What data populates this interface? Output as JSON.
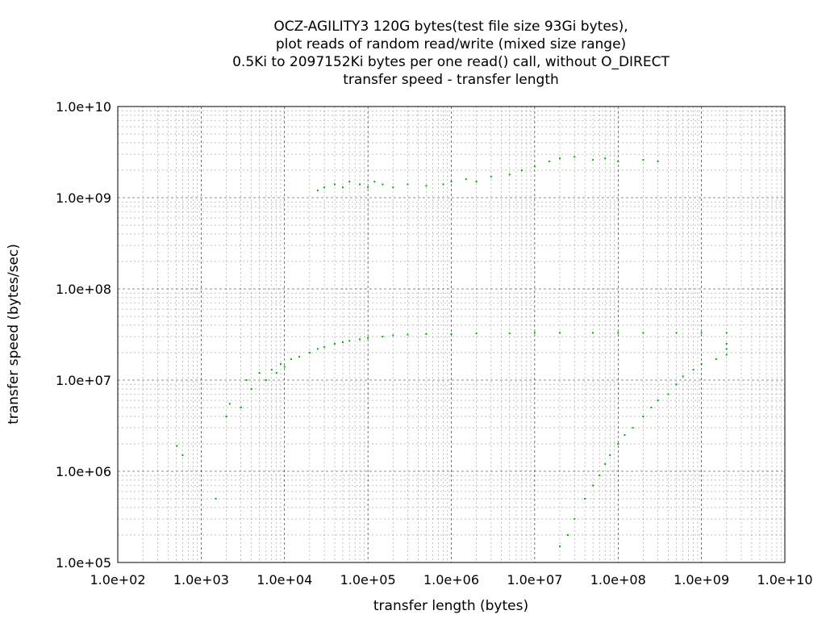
{
  "chart_data": {
    "type": "scatter",
    "title_lines": [
      "OCZ-AGILITY3 120G bytes(test file size 93Gi bytes),",
      "plot reads of random read/write (mixed size range)",
      "0.5Ki to 2097152Ki bytes per one read() call, without O_DIRECT",
      "transfer speed - transfer length"
    ],
    "xlabel": "transfer length (bytes)",
    "ylabel": "transfer speed (bytes/sec)",
    "x_scale": "log",
    "y_scale": "log",
    "xlim": [
      100,
      10000000000
    ],
    "ylim": [
      100000,
      10000000000
    ],
    "x_ticks": [
      {
        "value": 100,
        "label": "1.0e+02"
      },
      {
        "value": 1000,
        "label": "1.0e+03"
      },
      {
        "value": 10000,
        "label": "1.0e+04"
      },
      {
        "value": 100000,
        "label": "1.0e+05"
      },
      {
        "value": 1000000,
        "label": "1.0e+06"
      },
      {
        "value": 10000000,
        "label": "1.0e+07"
      },
      {
        "value": 100000000,
        "label": "1.0e+08"
      },
      {
        "value": 1000000000,
        "label": "1.0e+09"
      },
      {
        "value": 10000000000,
        "label": "1.0e+10"
      }
    ],
    "y_ticks": [
      {
        "value": 100000,
        "label": "1.0e+05"
      },
      {
        "value": 1000000,
        "label": "1.0e+06"
      },
      {
        "value": 10000000,
        "label": "1.0e+07"
      },
      {
        "value": 100000000,
        "label": "1.0e+08"
      },
      {
        "value": 1000000000,
        "label": "1.0e+09"
      },
      {
        "value": 10000000000,
        "label": "1.0e+10"
      }
    ],
    "grid": "major and minor",
    "point_color": "#00b000",
    "series": [
      {
        "values_desc": "main throughput curve",
        "points": [
          [
            512,
            1900000
          ],
          [
            600,
            1500000
          ],
          [
            1500,
            500000
          ],
          [
            2000,
            4000000
          ],
          [
            2200,
            5500000
          ],
          [
            3000,
            5000000
          ],
          [
            3500,
            10000000
          ],
          [
            4000,
            8000000
          ],
          [
            5000,
            12000000
          ],
          [
            6000,
            10000000
          ],
          [
            7000,
            13000000
          ],
          [
            8000,
            12000000
          ],
          [
            9000,
            15000000
          ],
          [
            10000,
            14000000
          ],
          [
            12000,
            17000000
          ],
          [
            15000,
            18000000
          ],
          [
            20000,
            20000000
          ],
          [
            25000,
            22000000
          ],
          [
            30000,
            23000000
          ],
          [
            40000,
            25000000
          ],
          [
            50000,
            26000000
          ],
          [
            60000,
            27000000
          ],
          [
            80000,
            28000000
          ],
          [
            100000,
            29000000
          ],
          [
            150000,
            30000000
          ],
          [
            200000,
            31000000
          ],
          [
            300000,
            31500000
          ],
          [
            500000,
            32000000
          ],
          [
            1000000,
            32000000
          ],
          [
            2000000,
            32500000
          ],
          [
            5000000,
            32500000
          ],
          [
            10000000,
            33000000
          ],
          [
            20000000,
            33000000
          ],
          [
            50000000,
            33000000
          ],
          [
            100000000,
            33000000
          ],
          [
            200000000,
            33000000
          ],
          [
            500000000,
            33000000
          ],
          [
            1000000000,
            33000000
          ],
          [
            2000000000,
            33000000
          ]
        ]
      },
      {
        "values_desc": "high-speed cached cluster",
        "points": [
          [
            25000,
            1200000000
          ],
          [
            30000,
            1300000000
          ],
          [
            40000,
            1400000000
          ],
          [
            50000,
            1300000000
          ],
          [
            60000,
            1500000000
          ],
          [
            80000,
            1400000000
          ],
          [
            100000,
            1300000000
          ],
          [
            120000,
            1500000000
          ],
          [
            150000,
            1400000000
          ],
          [
            200000,
            1300000000
          ],
          [
            300000,
            1400000000
          ],
          [
            500000,
            1350000000
          ],
          [
            800000,
            1400000000
          ],
          [
            1000000,
            1500000000
          ],
          [
            1500000,
            1600000000
          ],
          [
            2000000,
            1500000000
          ],
          [
            3000000,
            1700000000
          ],
          [
            5000000,
            1800000000
          ],
          [
            7000000,
            2000000000
          ],
          [
            10000000,
            2200000000
          ],
          [
            15000000,
            2500000000
          ],
          [
            20000000,
            2700000000
          ],
          [
            30000000,
            2800000000
          ],
          [
            50000000,
            2600000000
          ],
          [
            70000000,
            2700000000
          ],
          [
            100000000,
            2500000000
          ],
          [
            200000000,
            2600000000
          ],
          [
            300000000,
            2500000000
          ]
        ]
      },
      {
        "values_desc": "large transfer dip cluster",
        "points": [
          [
            20000000,
            150000
          ],
          [
            25000000,
            200000
          ],
          [
            30000000,
            300000
          ],
          [
            40000000,
            500000
          ],
          [
            50000000,
            700000
          ],
          [
            60000000,
            900000
          ],
          [
            70000000,
            1200000
          ],
          [
            80000000,
            1500000
          ],
          [
            100000000,
            2000000
          ],
          [
            120000000,
            2500000
          ],
          [
            150000000,
            3000000
          ],
          [
            200000000,
            4000000
          ],
          [
            250000000,
            5000000
          ],
          [
            300000000,
            6000000
          ],
          [
            400000000,
            7000000
          ],
          [
            500000000,
            9000000
          ],
          [
            600000000,
            11000000
          ],
          [
            800000000,
            13000000
          ],
          [
            1000000000,
            15000000
          ],
          [
            1500000000,
            17000000
          ],
          [
            2000000000,
            19000000
          ],
          [
            2000000000,
            22000000
          ],
          [
            2000000000,
            25000000
          ]
        ]
      }
    ]
  }
}
